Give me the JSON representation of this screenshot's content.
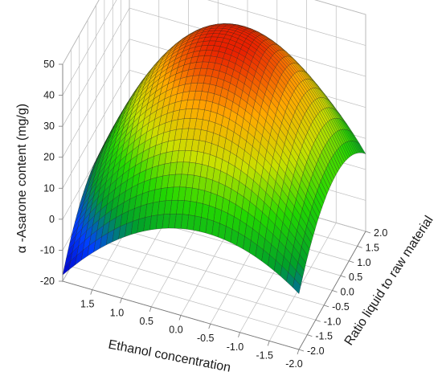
{
  "chart_data": {
    "type": "surface",
    "x": {
      "label": "Ethanol concentration",
      "range": [
        -2.0,
        2.0
      ],
      "ticks": [
        "1.5",
        "1.0",
        "0.5",
        "0.0",
        "-0.5",
        "-1.0",
        "-1.5",
        "-2.0"
      ],
      "tick_values": [
        1.5,
        1.0,
        0.5,
        0.0,
        -0.5,
        -1.0,
        -1.5,
        -2.0
      ]
    },
    "y": {
      "label": "Ratio liquid to raw material",
      "range": [
        -2.0,
        2.0
      ],
      "ticks": [
        "-2.0",
        "-1.5",
        "-1.0",
        "-0.5",
        "0.0",
        "0.5",
        "1.0",
        "1.5",
        "2.0"
      ],
      "tick_values": [
        -2.0,
        -1.5,
        -1.0,
        -0.5,
        0.0,
        0.5,
        1.0,
        1.5,
        2.0
      ]
    },
    "z": {
      "label": "α -Asarone content (mg/g)",
      "range": [
        -20,
        50
      ],
      "ticks": [
        "-20",
        "-10",
        "0",
        "10",
        "20",
        "30",
        "40",
        "50"
      ],
      "tick_values": [
        -20,
        -10,
        0,
        10,
        20,
        30,
        40,
        50
      ]
    },
    "surface_samples": {
      "x": [
        -2.0,
        0.0,
        2.0
      ],
      "y": [
        -2.0,
        0.0,
        2.0
      ],
      "z": [
        [
          -2,
          15,
          5
        ],
        [
          8,
          48,
          28
        ],
        [
          -18,
          0,
          -12
        ]
      ]
    },
    "grid": true,
    "colormap": [
      "#0000c8",
      "#0040ff",
      "#00a02a",
      "#22d800",
      "#c8e000",
      "#ffa800",
      "#e82000"
    ]
  }
}
